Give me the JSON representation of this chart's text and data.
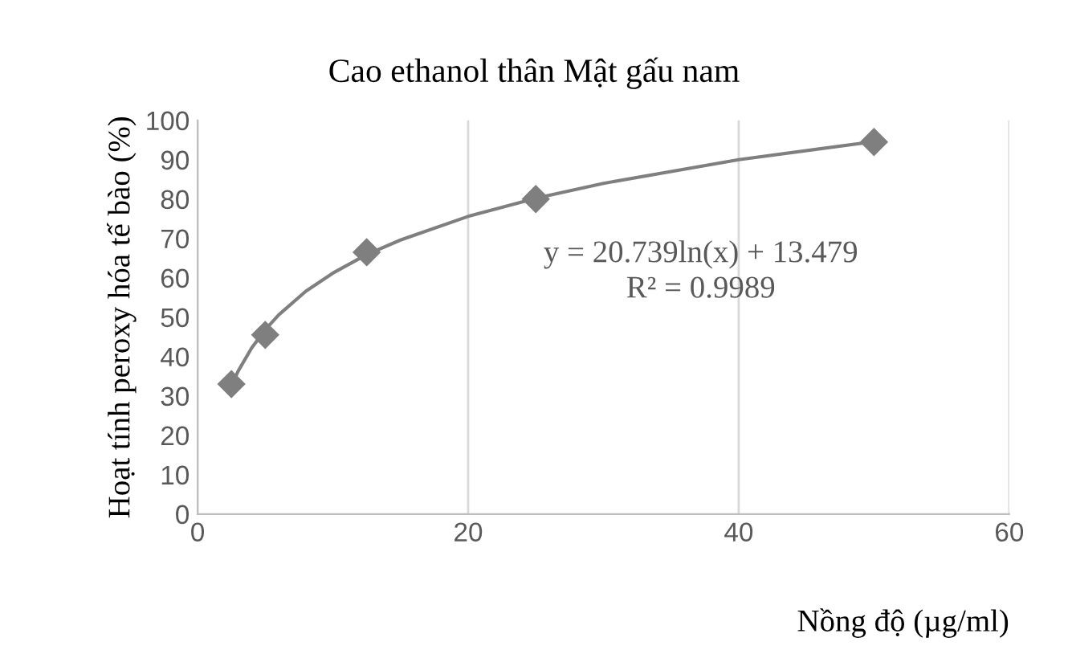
{
  "chart_data": {
    "type": "scatter",
    "title": "Cao ethanol thân Mật gấu nam",
    "xlabel": "Nồng độ (µg/ml)",
    "ylabel": "Hoạt tính peroxy hóa tế bào (%)",
    "series": [
      {
        "color": "#7f7f7f",
        "marker": "diamond",
        "x": [
          2.5,
          5,
          12.5,
          25,
          50
        ],
        "values": [
          33,
          45.5,
          66.5,
          80,
          94.5
        ]
      },
      {
        "type": "line",
        "color": "#7f7f7f",
        "marker": "none",
        "x": [
          2.5,
          3,
          4,
          5,
          6,
          8,
          10,
          12.5,
          15,
          20,
          25,
          30,
          40,
          50
        ],
        "values": [
          32.5,
          36.3,
          42.2,
          46.8,
          50.6,
          56.6,
          61.2,
          65.9,
          69.6,
          75.6,
          80.2,
          84,
          90,
          94.6
        ]
      }
    ],
    "annotations": [
      "y = 20.739ln(x) + 13.479",
      "R² = 0.9989"
    ],
    "xlim": [
      0,
      60
    ],
    "xticks": [
      0,
      20,
      40,
      60
    ],
    "ylim": [
      0,
      100
    ],
    "yticks": [
      0,
      10,
      20,
      30,
      40,
      50,
      60,
      70,
      80,
      90,
      100
    ],
    "grid": "x",
    "legend": false
  }
}
